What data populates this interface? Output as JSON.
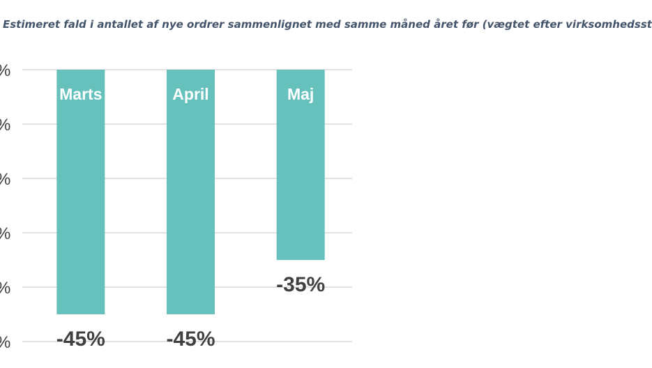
{
  "chart_data": {
    "type": "bar",
    "title": "Estimeret fald i antallet af nye ordrer sammenlignet med samme måned året før (vægtet efter virksomhedsst",
    "categories": [
      "Marts",
      "April",
      "Maj"
    ],
    "values": [
      -45,
      -45,
      -35
    ],
    "value_labels": [
      "-45%",
      "-45%",
      "-35%"
    ],
    "ylim": [
      -50,
      0
    ],
    "y_ticks": [
      0,
      -10,
      -20,
      -30,
      -40,
      -50
    ],
    "y_tick_labels": [
      "%",
      "%",
      "%",
      "%",
      "%",
      "%"
    ],
    "xlabel": "",
    "ylabel": "",
    "grid": true,
    "legend": "none",
    "colors": {
      "bar": "#66c1bd",
      "bar_label": "#ffffff",
      "value_label": "#404040",
      "grid": "#d9d9d9",
      "title": "#44546a"
    }
  }
}
